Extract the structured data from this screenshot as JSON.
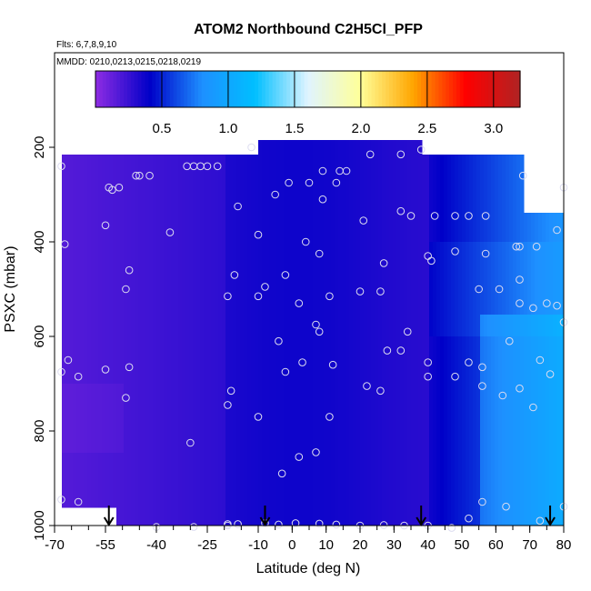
{
  "chart_data": {
    "type": "heatmap",
    "title": "ATOM2 Northbound C2H5Cl_PFP",
    "subtitle_flights": "Flts: 6,7,8,9,10",
    "subtitle_dates": "MMDD: 0210,0213,0215,0218,0219",
    "xlabel": "Latitude (deg N)",
    "ylabel": "PSXC (mbar)",
    "xlim": [
      -70,
      80
    ],
    "ylim": [
      1000,
      0
    ],
    "x_ticks": [
      "-70",
      "-55",
      "-40",
      "-25",
      "-10",
      "0",
      "10",
      "20",
      "30",
      "40",
      "50",
      "60",
      "70",
      "80"
    ],
    "y_ticks": [
      "200",
      "400",
      "600",
      "800",
      "1000"
    ],
    "colorbar": {
      "range": [
        0,
        3.2
      ],
      "ticks": [
        "0.5",
        "1.0",
        "1.5",
        "2.0",
        "2.5",
        "3.0"
      ],
      "colors": [
        "#8a2be2",
        "#0000c8",
        "#1e90ff",
        "#00bfff",
        "#e0f4ff",
        "#ffff99",
        "#ffa500",
        "#ff0000",
        "#b22222"
      ]
    },
    "profile_arrows_lat": [
      -54,
      -8,
      38,
      76
    ],
    "sample_points": [
      {
        "x": -68,
        "y": 240
      },
      {
        "x": -67,
        "y": 405
      },
      {
        "x": -66,
        "y": 650
      },
      {
        "x": -68,
        "y": 675
      },
      {
        "x": -63,
        "y": 685
      },
      {
        "x": -68,
        "y": 945
      },
      {
        "x": -63,
        "y": 950
      },
      {
        "x": -54,
        "y": 285
      },
      {
        "x": -51,
        "y": 285
      },
      {
        "x": -55,
        "y": 365
      },
      {
        "x": -53,
        "y": 290
      },
      {
        "x": -49,
        "y": 500
      },
      {
        "x": -48,
        "y": 460
      },
      {
        "x": -48,
        "y": 665
      },
      {
        "x": -49,
        "y": 730
      },
      {
        "x": -46,
        "y": 260
      },
      {
        "x": -45,
        "y": 260
      },
      {
        "x": -42,
        "y": 260
      },
      {
        "x": -55,
        "y": 670
      },
      {
        "x": -31,
        "y": 240
      },
      {
        "x": -29,
        "y": 240
      },
      {
        "x": -27,
        "y": 240
      },
      {
        "x": -25,
        "y": 240
      },
      {
        "x": -22,
        "y": 240
      },
      {
        "x": -36,
        "y": 380
      },
      {
        "x": -16,
        "y": 325
      },
      {
        "x": -17,
        "y": 470
      },
      {
        "x": -19,
        "y": 515
      },
      {
        "x": -18,
        "y": 715
      },
      {
        "x": -19,
        "y": 745
      },
      {
        "x": -30,
        "y": 825
      },
      {
        "x": -12,
        "y": 200
      },
      {
        "x": -10,
        "y": 385
      },
      {
        "x": -8,
        "y": 495
      },
      {
        "x": -10,
        "y": 515
      },
      {
        "x": -10,
        "y": 770
      },
      {
        "x": -5,
        "y": 300
      },
      {
        "x": -1,
        "y": 275
      },
      {
        "x": -2,
        "y": 470
      },
      {
        "x": 2,
        "y": 530
      },
      {
        "x": -4,
        "y": 610
      },
      {
        "x": -2,
        "y": 675
      },
      {
        "x": 3,
        "y": 655
      },
      {
        "x": 2,
        "y": 855
      },
      {
        "x": -3,
        "y": 890
      },
      {
        "x": 5,
        "y": 275
      },
      {
        "x": 9,
        "y": 310
      },
      {
        "x": 9,
        "y": 250
      },
      {
        "x": 13,
        "y": 275
      },
      {
        "x": 14,
        "y": 250
      },
      {
        "x": 16,
        "y": 250
      },
      {
        "x": 4,
        "y": 400
      },
      {
        "x": 8,
        "y": 425
      },
      {
        "x": 11,
        "y": 515
      },
      {
        "x": 7,
        "y": 575
      },
      {
        "x": 8,
        "y": 590
      },
      {
        "x": 12,
        "y": 660
      },
      {
        "x": 11,
        "y": 770
      },
      {
        "x": 7,
        "y": 845
      },
      {
        "x": 23,
        "y": 215
      },
      {
        "x": 32,
        "y": 215
      },
      {
        "x": 38,
        "y": 205
      },
      {
        "x": 21,
        "y": 355
      },
      {
        "x": 20,
        "y": 505
      },
      {
        "x": 26,
        "y": 505
      },
      {
        "x": 27,
        "y": 445
      },
      {
        "x": 22,
        "y": 705
      },
      {
        "x": 26,
        "y": 715
      },
      {
        "x": 28,
        "y": 630
      },
      {
        "x": 32,
        "y": 630
      },
      {
        "x": 34,
        "y": 590
      },
      {
        "x": 32,
        "y": 335
      },
      {
        "x": 35,
        "y": 345
      },
      {
        "x": 40,
        "y": 430
      },
      {
        "x": 41,
        "y": 440
      },
      {
        "x": 42,
        "y": 345
      },
      {
        "x": 40,
        "y": 655
      },
      {
        "x": 40,
        "y": 685
      },
      {
        "x": 48,
        "y": 345
      },
      {
        "x": 48,
        "y": 420
      },
      {
        "x": 52,
        "y": 345
      },
      {
        "x": 57,
        "y": 345
      },
      {
        "x": 48,
        "y": 685
      },
      {
        "x": 52,
        "y": 655
      },
      {
        "x": 55,
        "y": 500
      },
      {
        "x": 57,
        "y": 425
      },
      {
        "x": 56,
        "y": 665
      },
      {
        "x": 56,
        "y": 705
      },
      {
        "x": 61,
        "y": 500
      },
      {
        "x": 62,
        "y": 725
      },
      {
        "x": 64,
        "y": 610
      },
      {
        "x": 66,
        "y": 410
      },
      {
        "x": 67,
        "y": 410
      },
      {
        "x": 67,
        "y": 480
      },
      {
        "x": 67,
        "y": 530
      },
      {
        "x": 67,
        "y": 710
      },
      {
        "x": 68,
        "y": 260
      },
      {
        "x": 71,
        "y": 540
      },
      {
        "x": 72,
        "y": 410
      },
      {
        "x": 73,
        "y": 650
      },
      {
        "x": 71,
        "y": 750
      },
      {
        "x": 75,
        "y": 530
      },
      {
        "x": 76,
        "y": 680
      },
      {
        "x": 78,
        "y": 375
      },
      {
        "x": 78,
        "y": 535
      },
      {
        "x": 80,
        "y": 285
      },
      {
        "x": 80,
        "y": 570
      },
      {
        "x": 56,
        "y": 950
      },
      {
        "x": 63,
        "y": 960
      },
      {
        "x": 73,
        "y": 990
      },
      {
        "x": 80,
        "y": 960
      },
      {
        "x": -40,
        "y": 1003
      },
      {
        "x": -29,
        "y": 1003
      },
      {
        "x": -19,
        "y": 997
      },
      {
        "x": -19,
        "y": 1000
      },
      {
        "x": -8,
        "y": 995
      },
      {
        "x": -4,
        "y": 998
      },
      {
        "x": 1,
        "y": 995
      },
      {
        "x": 8,
        "y": 996
      },
      {
        "x": 13,
        "y": 998
      },
      {
        "x": 20,
        "y": 1000
      },
      {
        "x": 27,
        "y": 999
      },
      {
        "x": 33,
        "y": 1000
      },
      {
        "x": 40,
        "y": 1000
      },
      {
        "x": 47,
        "y": 1005
      },
      {
        "x": 52,
        "y": 985
      },
      {
        "x": -16,
        "y": 997
      }
    ]
  }
}
